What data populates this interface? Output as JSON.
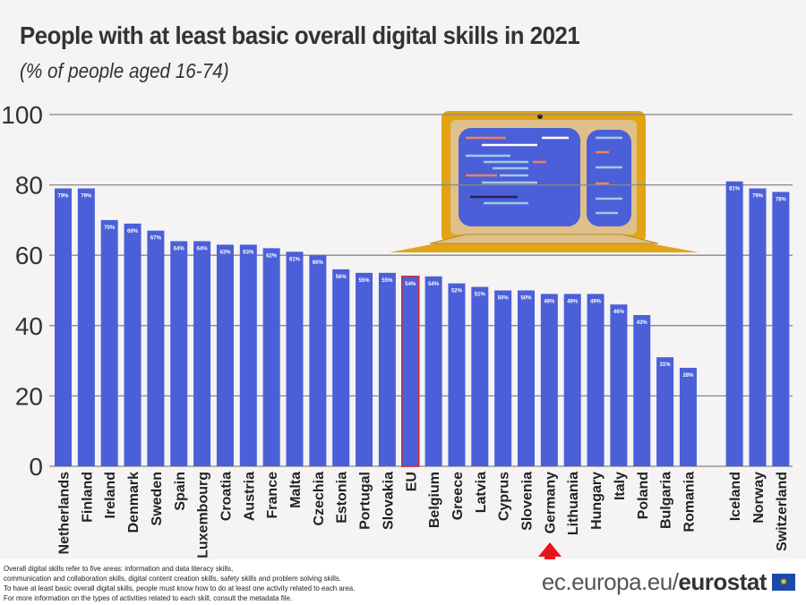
{
  "title": "People with at least basic overall digital skills  in 2021",
  "subtitle": "(% of people aged 16-74)",
  "chart_data": {
    "type": "bar",
    "ylim": [
      0,
      100
    ],
    "yticks": [
      0,
      20,
      40,
      60,
      80,
      100
    ],
    "grid": true,
    "categories": [
      "Netherlands",
      "Finland",
      "Ireland",
      "Denmark",
      "Sweden",
      "Spain",
      "Luxembourg",
      "Croatia",
      "Austria",
      "France",
      "Malta",
      "Czechia",
      "Estonia",
      "Portugal",
      "Slovakia",
      "EU",
      "Belgium",
      "Greece",
      "Latvia",
      "Cyprus",
      "Slovenia",
      "Germany",
      "Lithuania",
      "Hungary",
      "Italy",
      "Poland",
      "Bulgaria",
      "Romania",
      "Iceland",
      "Norway",
      "Switzerland"
    ],
    "values": [
      79,
      79,
      70,
      69,
      67,
      64,
      64,
      63,
      63,
      62,
      61,
      60,
      56,
      55,
      55,
      54,
      54,
      52,
      51,
      50,
      50,
      49,
      49,
      49,
      46,
      43,
      31,
      28,
      81,
      79,
      78
    ],
    "data_labels": [
      "79%",
      "79%",
      "70%",
      "69%",
      "67%",
      "64%",
      "64%",
      "63%",
      "63%",
      "62%",
      "61%",
      "60%",
      "56%",
      "55%",
      "55%",
      "54%",
      "54%",
      "52%",
      "51%",
      "50%",
      "50%",
      "49%",
      "49%",
      "49%",
      "46%",
      "43%",
      "31%",
      "28%",
      "81%",
      "79%",
      "78%"
    ],
    "highlight": "EU",
    "marked": "Germany",
    "colors": {
      "bar": "#4b5fd8",
      "eu_outline": "#d8262e",
      "arrow": "#e8141c",
      "grid": "#888888",
      "laptop": "#e3a414"
    }
  },
  "footnote": [
    "Overall digital skills refer to five areas: information and data literacy skills,",
    "communication and collaboration skills, digital content creation skills, safety skills and problem solving skills.",
    "To have at least basic overall digital skills, people must know how to do at least one activity related to each area.",
    "For more information on the types of activities related to each skill, consult the metadata file."
  ],
  "brand": {
    "site": "ec.europa.eu/",
    "name": "eurostat"
  }
}
